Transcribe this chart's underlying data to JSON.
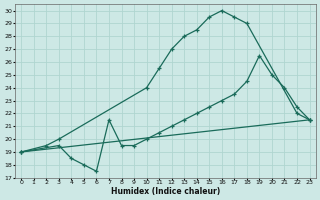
{
  "xlabel": "Humidex (Indice chaleur)",
  "bg_color": "#cde8e5",
  "grid_color": "#b0d5d0",
  "line_color": "#1a6b5a",
  "xlim": [
    -0.5,
    23.5
  ],
  "ylim": [
    17,
    30.5
  ],
  "xticks": [
    0,
    1,
    2,
    3,
    4,
    5,
    6,
    7,
    8,
    9,
    10,
    11,
    12,
    13,
    14,
    15,
    16,
    17,
    18,
    19,
    20,
    21,
    22,
    23
  ],
  "yticks": [
    17,
    18,
    19,
    20,
    21,
    22,
    23,
    24,
    25,
    26,
    27,
    28,
    29,
    30
  ],
  "line1": {
    "x": [
      0,
      2,
      3,
      10,
      11,
      12,
      13,
      14,
      15,
      16,
      17,
      18,
      22,
      23
    ],
    "y": [
      19,
      19.5,
      20,
      24,
      25.5,
      27,
      28,
      28.5,
      29.5,
      30,
      29.5,
      29,
      22,
      21.5
    ]
  },
  "line2": {
    "x": [
      0,
      23
    ],
    "y": [
      19,
      21.5
    ]
  },
  "line3": {
    "x": [
      0,
      3,
      4,
      5,
      6,
      7,
      8,
      9,
      10,
      11,
      12,
      13,
      14,
      15,
      16,
      17,
      18,
      19,
      20,
      21,
      22,
      23
    ],
    "y": [
      19,
      19.5,
      18.5,
      18,
      17.5,
      21.5,
      19.5,
      19.5,
      20,
      20.5,
      21,
      21.5,
      22,
      22.5,
      23,
      23.5,
      24.5,
      26.5,
      25,
      24,
      22.5,
      21.5
    ]
  }
}
